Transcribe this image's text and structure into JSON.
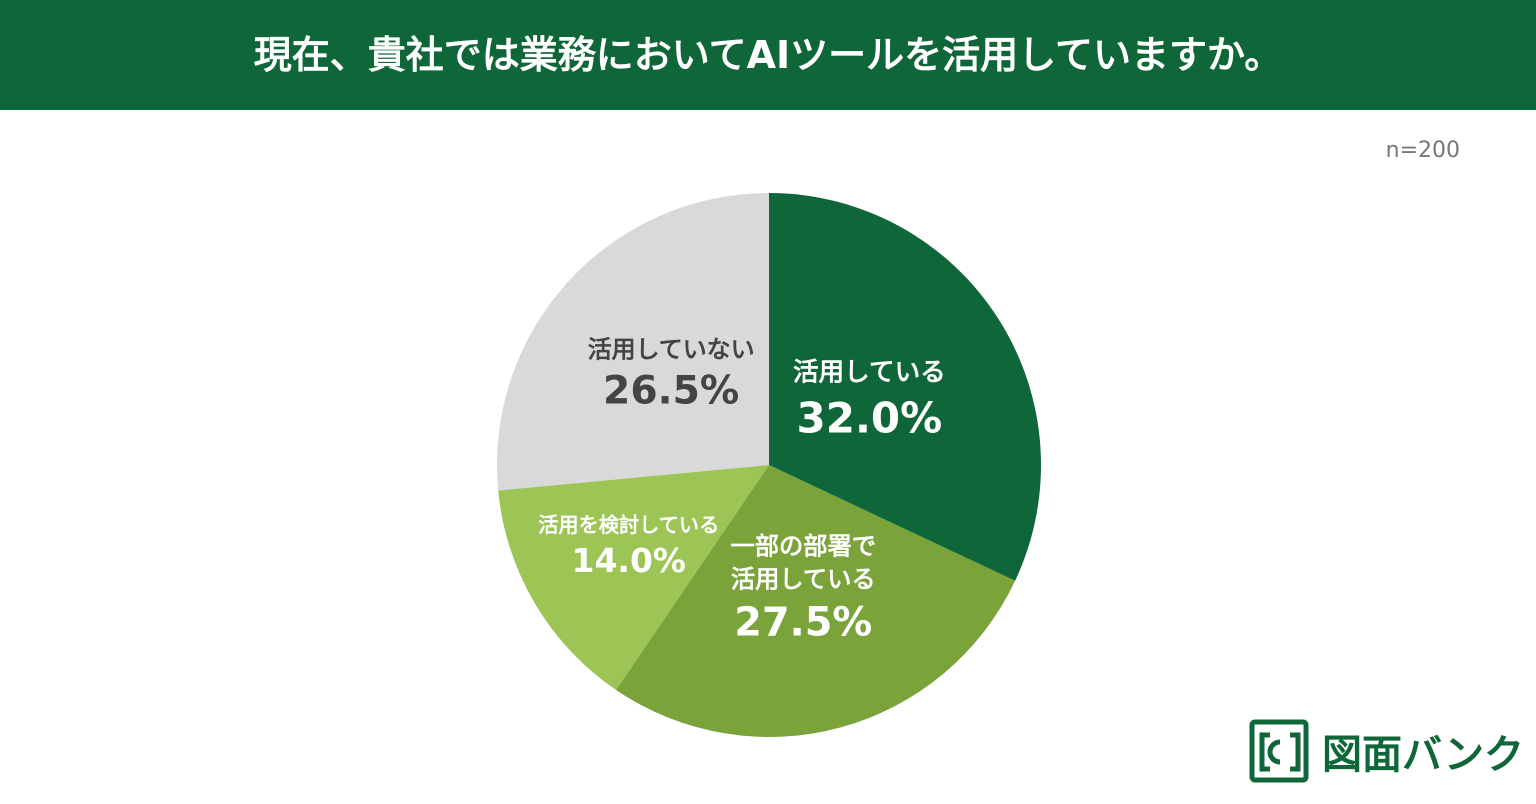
{
  "chart_data": {
    "type": "pie",
    "title": "現在、貴社では業務においてAIツールを活用していますか。",
    "annotation": "n=200",
    "categories": [
      "活用している",
      "一部の部署で\n活用している",
      "活用を検討している",
      "活用していない"
    ],
    "values": [
      32.0,
      27.5,
      14.0,
      26.5
    ],
    "value_labels": [
      "32.0%",
      "27.5%",
      "14.0%",
      "26.5%"
    ],
    "colors": [
      "#0f6638",
      "#7aa33a",
      "#9dc556",
      "#d9d9d9"
    ],
    "start_angle": 0,
    "direction": "clockwise"
  },
  "logo": "図面バンク"
}
